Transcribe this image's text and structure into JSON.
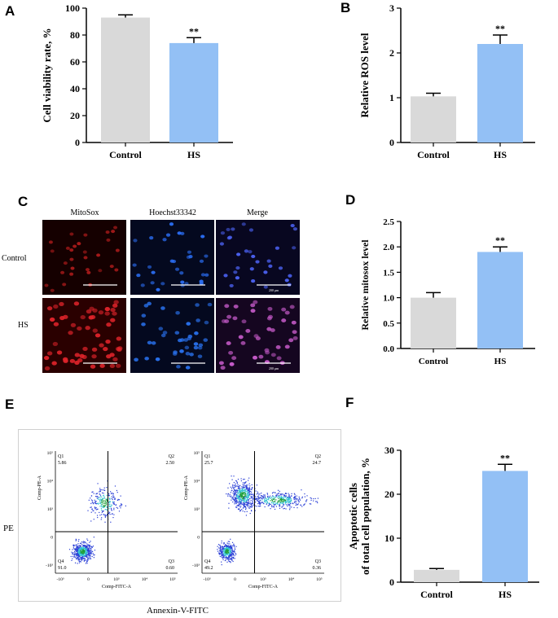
{
  "panels": {
    "A": "A",
    "B": "B",
    "C": "C",
    "D": "D",
    "E": "E",
    "F": "F"
  },
  "chart_data": [
    {
      "id": "A",
      "type": "bar",
      "categories": [
        "Control",
        "HS"
      ],
      "values": [
        93,
        74
      ],
      "errors": [
        2,
        4
      ],
      "significance": [
        "",
        "**"
      ],
      "ylabel": "Cell viability rate, %",
      "ylim": [
        0,
        100
      ],
      "yticks": [
        0,
        20,
        40,
        60,
        80,
        100
      ],
      "colors": [
        "#d9d9d9",
        "#93c0f5"
      ]
    },
    {
      "id": "B",
      "type": "bar",
      "categories": [
        "Control",
        "HS"
      ],
      "values": [
        1.03,
        2.2
      ],
      "errors": [
        0.07,
        0.2
      ],
      "significance": [
        "",
        "**"
      ],
      "ylabel": "Relative ROS level",
      "ylim": [
        0,
        3
      ],
      "yticks": [
        0,
        1,
        2,
        3
      ],
      "colors": [
        "#d9d9d9",
        "#93c0f5"
      ]
    },
    {
      "id": "D",
      "type": "bar",
      "categories": [
        "Control",
        "HS"
      ],
      "values": [
        1.0,
        1.9
      ],
      "errors": [
        0.1,
        0.1
      ],
      "significance": [
        "",
        "**"
      ],
      "ylabel": "Relative mitosox level",
      "ylim": [
        0,
        2.5
      ],
      "yticks": [
        "0.0",
        "0.5",
        "1.0",
        "1.5",
        "2.0",
        "2.5"
      ],
      "colors": [
        "#d9d9d9",
        "#93c0f5"
      ]
    },
    {
      "id": "F",
      "type": "bar",
      "categories": [
        "Control",
        "HS"
      ],
      "values": [
        2.8,
        25.3
      ],
      "errors": [
        0.3,
        1.5
      ],
      "significance": [
        "",
        "**"
      ],
      "ylabel": "Apoptotic cells\nof total cell population, %",
      "ylim": [
        0,
        30
      ],
      "yticks": [
        0,
        10,
        20,
        30
      ],
      "colors": [
        "#d9d9d9",
        "#93c0f5"
      ]
    }
  ],
  "microscopy": {
    "columns": [
      "MitoSox",
      "Hoechst33342",
      "Merge"
    ],
    "rows": [
      "Control",
      "HS"
    ],
    "scalebar_label": "200 μm"
  },
  "flow": {
    "y_axis_label": "PE",
    "x_axis_label": "Annexin-V-FITC",
    "plot_ylabel": "Comp-PE-A",
    "plot_xlabel": "Comp-FITC-A",
    "plots": [
      {
        "q1": "Q1",
        "q1v": "5.86",
        "q2": "Q2",
        "q2v": "2.50",
        "q3": "Q3",
        "q3v": "0.60",
        "q4": "Q4",
        "q4v": "91.0"
      },
      {
        "q1": "Q1",
        "q1v": "25.7",
        "q2": "Q2",
        "q2v": "24.7",
        "q3": "Q3",
        "q3v": "0.36",
        "q4": "Q4",
        "q4v": "49.2"
      }
    ],
    "xticks": [
      "-10³",
      "0",
      "10³",
      "10⁴",
      "10⁵"
    ],
    "yticks": [
      "10⁵",
      "10⁴",
      "10³",
      "0",
      "-10³"
    ]
  }
}
